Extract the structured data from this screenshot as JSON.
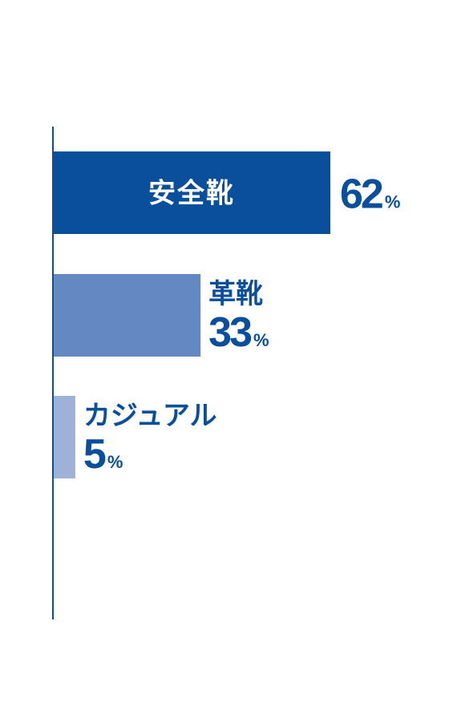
{
  "chart_data": {
    "type": "bar",
    "orientation": "horizontal",
    "categories": [
      "安全靴",
      "革靴",
      "カジュアル"
    ],
    "values": [
      62,
      33,
      5
    ],
    "unit": "%",
    "xlim": [
      0,
      62
    ],
    "grid": false,
    "legend": "none",
    "colors": [
      "#0a4f9c",
      "#6388c2",
      "#9eb1d8"
    ],
    "text_color": "#0a4f9c",
    "axis_color": "#0a4f9c"
  }
}
